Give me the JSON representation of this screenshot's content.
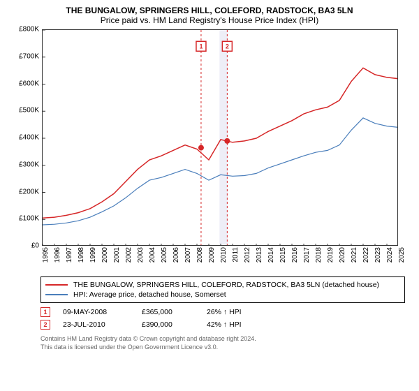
{
  "title": "THE BUNGALOW, SPRINGERS HILL, COLEFORD, RADSTOCK, BA3 5LN",
  "subtitle": "Price paid vs. HM Land Registry's House Price Index (HPI)",
  "chart": {
    "type": "line",
    "x_years": [
      1995,
      1996,
      1997,
      1998,
      1999,
      2000,
      2001,
      2002,
      2003,
      2004,
      2005,
      2006,
      2007,
      2008,
      2009,
      2010,
      2011,
      2012,
      2013,
      2014,
      2015,
      2016,
      2017,
      2018,
      2019,
      2020,
      2021,
      2022,
      2023,
      2024,
      2025
    ],
    "y_ticks": [
      0,
      100000,
      200000,
      300000,
      400000,
      500000,
      600000,
      700000,
      800000
    ],
    "y_tick_labels": [
      "£0",
      "£100K",
      "£200K",
      "£300K",
      "£400K",
      "£500K",
      "£600K",
      "£700K",
      "£800K"
    ],
    "x_range": [
      1995,
      2025
    ],
    "y_range": [
      0,
      800000
    ],
    "grid_color": "#333333",
    "background_color": "#ffffff",
    "axis_label_fontsize": 10,
    "series": [
      {
        "name": "THE BUNGALOW, SPRINGERS HILL, COLEFORD, RADSTOCK, BA3 5LN (detached house)",
        "color": "#d62728",
        "width": 1.5,
        "x": [
          1995,
          1996,
          1997,
          1998,
          1999,
          2000,
          2001,
          2002,
          2003,
          2004,
          2005,
          2006,
          2007,
          2008,
          2009,
          2010,
          2011,
          2012,
          2013,
          2014,
          2015,
          2016,
          2017,
          2018,
          2019,
          2020,
          2021,
          2022,
          2023,
          2024,
          2025
        ],
        "y": [
          105000,
          108000,
          115000,
          125000,
          140000,
          165000,
          195000,
          240000,
          285000,
          320000,
          335000,
          355000,
          375000,
          360000,
          320000,
          395000,
          385000,
          390000,
          400000,
          425000,
          445000,
          465000,
          490000,
          505000,
          515000,
          540000,
          610000,
          660000,
          635000,
          625000,
          620000
        ]
      },
      {
        "name": "HPI: Average price, detached house, Somerset",
        "color": "#4a7ebb",
        "width": 1.2,
        "x": [
          1995,
          1996,
          1997,
          1998,
          1999,
          2000,
          2001,
          2002,
          2003,
          2004,
          2005,
          2006,
          2007,
          2008,
          2009,
          2010,
          2011,
          2012,
          2013,
          2014,
          2015,
          2016,
          2017,
          2018,
          2019,
          2020,
          2021,
          2022,
          2023,
          2024,
          2025
        ],
        "y": [
          80000,
          82000,
          87000,
          95000,
          108000,
          128000,
          150000,
          180000,
          215000,
          245000,
          255000,
          270000,
          285000,
          270000,
          245000,
          265000,
          260000,
          262000,
          270000,
          290000,
          305000,
          320000,
          335000,
          348000,
          355000,
          375000,
          430000,
          475000,
          455000,
          445000,
          440000
        ]
      }
    ],
    "markers": [
      {
        "index": 1,
        "x": 2008.35,
        "y": 365000,
        "color": "#d62728",
        "label_y": 740000,
        "band": false
      },
      {
        "index": 2,
        "x": 2010.55,
        "y": 390000,
        "color": "#d62728",
        "label_y": 740000,
        "band": true,
        "band_from": 2009.9,
        "band_to": 2010.6,
        "band_color": "#eeeef7"
      }
    ],
    "vline_dash": "3,3"
  },
  "legend": {
    "items": [
      {
        "color": "#d62728",
        "label": "THE BUNGALOW, SPRINGERS HILL, COLEFORD, RADSTOCK, BA3 5LN (detached house)"
      },
      {
        "color": "#4a7ebb",
        "label": "HPI: Average price, detached house, Somerset"
      }
    ]
  },
  "sales": [
    {
      "index": "1",
      "color": "#d62728",
      "date": "09-MAY-2008",
      "price": "£365,000",
      "diff": "26% ↑ HPI"
    },
    {
      "index": "2",
      "color": "#d62728",
      "date": "23-JUL-2010",
      "price": "£390,000",
      "diff": "42% ↑ HPI"
    }
  ],
  "footer_line1": "Contains HM Land Registry data © Crown copyright and database right 2024.",
  "footer_line2": "This data is licensed under the Open Government Licence v3.0."
}
